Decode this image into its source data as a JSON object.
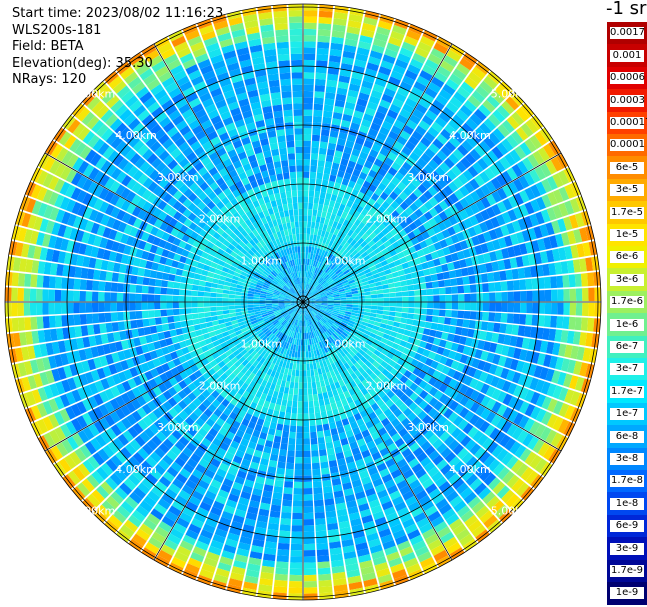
{
  "info": {
    "start_time": "Start time: 2023/08/02 11:16:23",
    "device": "WLS200s-181",
    "field": "Field: BETA",
    "elevation": "Elevation(deg): 35.30",
    "nrays": "NRays: 120"
  },
  "colorbar": {
    "title": "-1 sr",
    "levels": [
      {
        "label": "0.0017",
        "color": "#b00000"
      },
      {
        "label": "0.001",
        "color": "#c80000"
      },
      {
        "label": "0.0006",
        "color": "#e00000"
      },
      {
        "label": "0.0003",
        "color": "#f01a00"
      },
      {
        "label": "0.00017",
        "color": "#ff4000"
      },
      {
        "label": "0.0001",
        "color": "#ff6a00"
      },
      {
        "label": "6e-5",
        "color": "#ff8c00"
      },
      {
        "label": "3e-5",
        "color": "#ffaa00"
      },
      {
        "label": "1.7e-5",
        "color": "#ffc800"
      },
      {
        "label": "1e-5",
        "color": "#ffe400"
      },
      {
        "label": "6e-6",
        "color": "#f0f000"
      },
      {
        "label": "3e-6",
        "color": "#c8f030"
      },
      {
        "label": "1.7e-6",
        "color": "#9cf060"
      },
      {
        "label": "1e-6",
        "color": "#70f090"
      },
      {
        "label": "6e-7",
        "color": "#40f0c0"
      },
      {
        "label": "3e-7",
        "color": "#20f0e8"
      },
      {
        "label": "1.7e-7",
        "color": "#00e8ff"
      },
      {
        "label": "1e-7",
        "color": "#00c8ff"
      },
      {
        "label": "6e-8",
        "color": "#00a8ff"
      },
      {
        "label": "3e-8",
        "color": "#0088ff"
      },
      {
        "label": "1.7e-8",
        "color": "#0068ff"
      },
      {
        "label": "1e-8",
        "color": "#0048f0"
      },
      {
        "label": "6e-9",
        "color": "#0028d8"
      },
      {
        "label": "3e-9",
        "color": "#0010b8"
      },
      {
        "label": "1.7e-9",
        "color": "#000896"
      },
      {
        "label": "1e-9",
        "color": "#000070"
      }
    ]
  },
  "ppi": {
    "rays": 120,
    "ring_labels": [
      "1.00km",
      "2.00km",
      "3.00km",
      "4.00km",
      "5.00km"
    ],
    "colors": {
      "ring_line": "#000000",
      "label_text": "#ffffff"
    }
  }
}
